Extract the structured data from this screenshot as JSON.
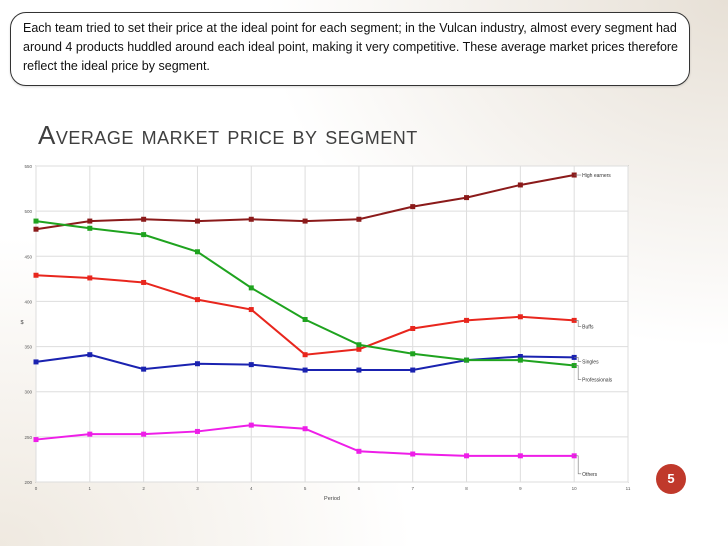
{
  "slide": {
    "callout": "Each team tried to set their price at the ideal point for each segment; in the Vulcan industry, almost every segment had around 4 products huddled around each ideal point, making it very competitive.  These average market prices therefore reflect the ideal price by segment.",
    "title": "Average market price by segment",
    "page_number": "5",
    "accent_color": "#c0392b"
  },
  "chart_data": {
    "type": "line",
    "title": "",
    "xlabel": "Period",
    "ylabel": "$",
    "x": [
      0,
      1,
      2,
      3,
      4,
      5,
      6,
      7,
      8,
      9,
      10
    ],
    "xticks": [
      "0",
      "1",
      "2",
      "3",
      "4",
      "5",
      "6",
      "7",
      "8",
      "9",
      "10",
      "11"
    ],
    "xlim": [
      0,
      11
    ],
    "yticks": [
      "200",
      "250",
      "300",
      "350",
      "400",
      "450",
      "500",
      "550"
    ],
    "ylim": [
      200,
      550
    ],
    "grid": true,
    "series": [
      {
        "name": "High earners",
        "color": "#8b1a1a",
        "values": [
          480,
          489,
          491,
          489,
          491,
          489,
          491,
          505,
          515,
          529,
          540
        ]
      },
      {
        "name": "Buffs",
        "color": "#e8261d",
        "values": [
          429,
          426,
          421,
          402,
          391,
          341,
          347,
          370,
          379,
          383,
          379
        ]
      },
      {
        "name": "Singles",
        "color": "#1a22b0",
        "values": [
          333,
          341,
          325,
          331,
          330,
          324,
          324,
          324,
          335,
          339,
          338
        ]
      },
      {
        "name": "Professionals",
        "color": "#1fa31f",
        "values": [
          489,
          481,
          474,
          455,
          415,
          380,
          352,
          342,
          335,
          335,
          329
        ]
      },
      {
        "name": "Others",
        "color": "#ee1ee8",
        "values": [
          247,
          253,
          253,
          256,
          263,
          259,
          234,
          231,
          229,
          229,
          229
        ]
      }
    ]
  }
}
